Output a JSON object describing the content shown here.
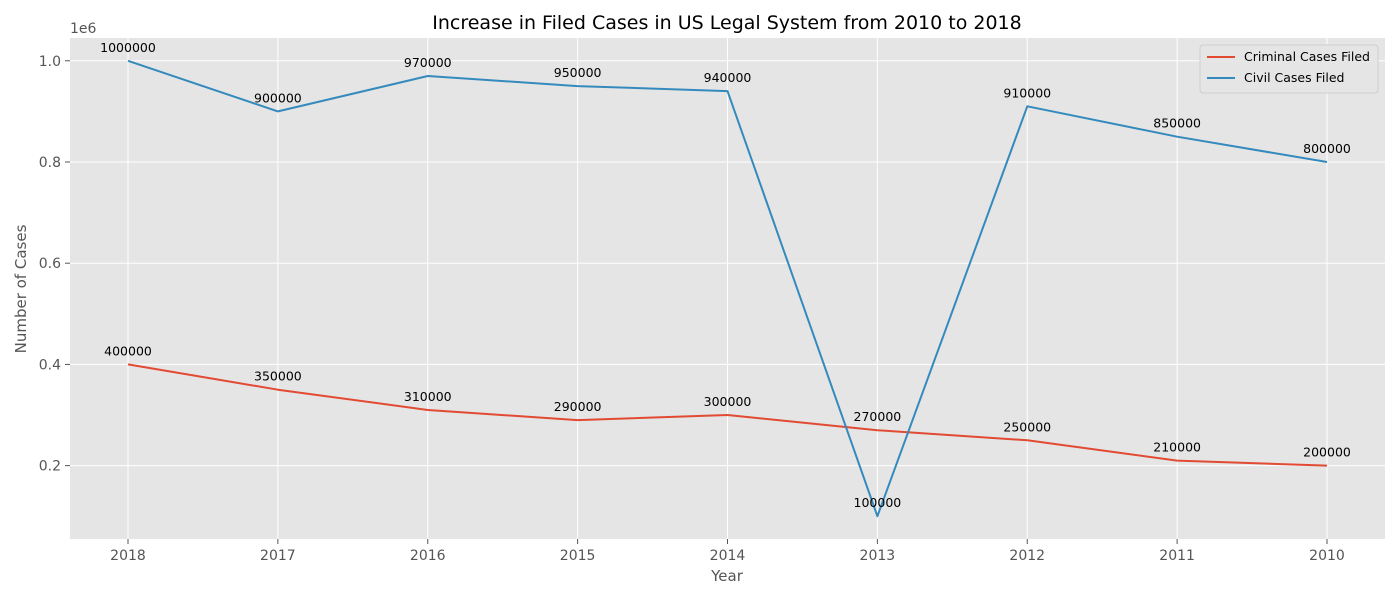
{
  "chart_data": {
    "type": "line",
    "title": "Increase in Filed Cases in US Legal System from 2010 to 2018",
    "xlabel": "Year",
    "ylabel": "Number of Cases",
    "y_offset_label": "1e6",
    "categories": [
      "2018",
      "2017",
      "2016",
      "2015",
      "2014",
      "2013",
      "2012",
      "2011",
      "2010"
    ],
    "yticks": [
      0.2,
      0.4,
      0.6,
      0.8,
      1.0
    ],
    "ytick_labels": [
      "0.2",
      "0.4",
      "0.6",
      "0.8",
      "1.0"
    ],
    "ylim": [
      55000,
      1045000
    ],
    "grid": true,
    "legend_position": "top-right",
    "series": [
      {
        "name": "Criminal Cases Filed",
        "color": "#E24A33",
        "values": [
          400000,
          350000,
          310000,
          290000,
          300000,
          270000,
          250000,
          210000,
          200000
        ]
      },
      {
        "name": "Civil Cases Filed",
        "color": "#348ABD",
        "values": [
          1000000,
          900000,
          970000,
          950000,
          940000,
          100000,
          910000,
          850000,
          800000
        ]
      }
    ]
  }
}
